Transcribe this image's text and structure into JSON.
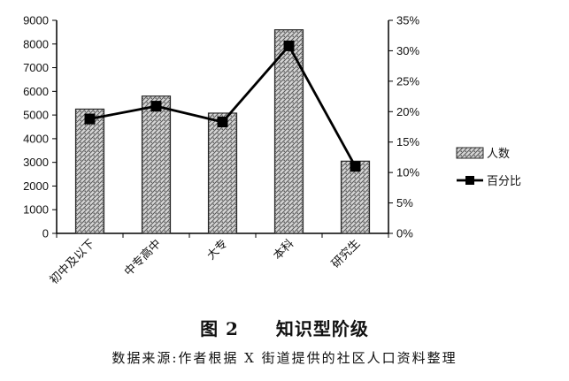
{
  "figure": {
    "title_label": "图 2",
    "title_text": "知识型阶级",
    "source_note": "数据来源:作者根据 X 街道提供的社区人口资料整理"
  },
  "chart_data": {
    "type": "bar",
    "categories": [
      "初中及以下",
      "中专高中",
      "大专",
      "本科",
      "研究生"
    ],
    "series": [
      {
        "name": "人数",
        "type": "bar",
        "axis": "left",
        "values": [
          5250,
          5800,
          5080,
          8600,
          3050
        ]
      },
      {
        "name": "百分比",
        "type": "line",
        "axis": "right",
        "values": [
          18.8,
          20.9,
          18.3,
          30.8,
          11.0
        ]
      }
    ],
    "y_left": {
      "min": 0,
      "max": 9000,
      "ticks": [
        "0",
        "1000",
        "2000",
        "3000",
        "4000",
        "5000",
        "6000",
        "7000",
        "8000",
        "9000"
      ]
    },
    "y_right": {
      "min": 0,
      "max": 35,
      "ticks": [
        "0%",
        "5%",
        "10%",
        "15%",
        "20%",
        "25%",
        "30%",
        "35%"
      ]
    },
    "legend_position": "right",
    "grid": false,
    "colors": {
      "bar_fill": "#cfcfcf",
      "bar_stroke": "#2a2a2a",
      "line": "#000000"
    }
  }
}
